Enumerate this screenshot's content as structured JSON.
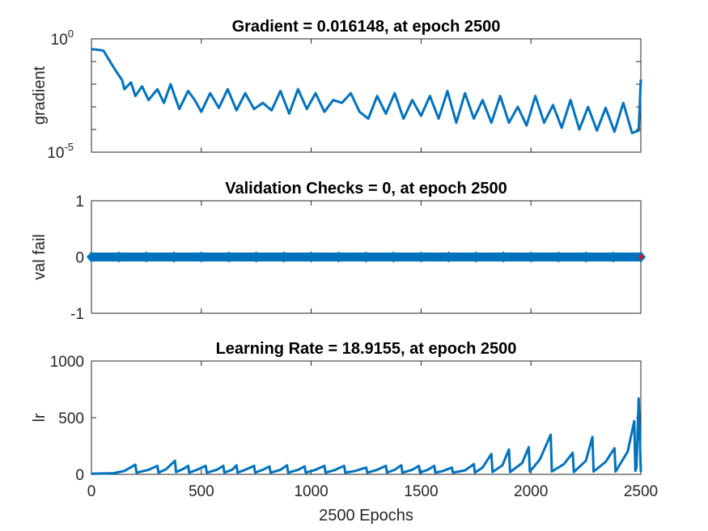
{
  "chart_data": [
    {
      "type": "line",
      "title": "Gradient = 0.016148, at epoch 2500",
      "xlabel": "",
      "ylabel": "gradient",
      "yscale": "log",
      "ylim": [
        1e-05,
        1
      ],
      "xlim": [
        0,
        2500
      ],
      "yticks": [
        {
          "base": "10",
          "exp": "0"
        },
        {
          "base": "10",
          "exp": "-5"
        }
      ],
      "color": "#0072BD",
      "series": [
        {
          "x": [
            0,
            30,
            55,
            80,
            110,
            140,
            150,
            180,
            200,
            230,
            260,
            300,
            330,
            360,
            400,
            440,
            470,
            500,
            540,
            580,
            620,
            660,
            700,
            740,
            780,
            820,
            860,
            900,
            940,
            980,
            1020,
            1060,
            1100,
            1140,
            1180,
            1220,
            1260,
            1300,
            1340,
            1380,
            1420,
            1460,
            1500,
            1540,
            1580,
            1620,
            1660,
            1700,
            1740,
            1780,
            1820,
            1860,
            1900,
            1940,
            1980,
            2020,
            2060,
            2100,
            2140,
            2180,
            2220,
            2260,
            2300,
            2340,
            2380,
            2420,
            2460,
            2490,
            2500
          ],
          "y": [
            0.35,
            0.33,
            0.3,
            0.12,
            0.04,
            0.015,
            0.006,
            0.012,
            0.003,
            0.008,
            0.002,
            0.006,
            0.0015,
            0.01,
            0.0008,
            0.005,
            0.002,
            0.0006,
            0.004,
            0.0009,
            0.006,
            0.0007,
            0.004,
            0.0008,
            0.0015,
            0.0007,
            0.005,
            0.0005,
            0.006,
            0.0008,
            0.004,
            0.0006,
            0.002,
            0.0015,
            0.004,
            0.0006,
            0.0003,
            0.003,
            0.0005,
            0.004,
            0.0003,
            0.002,
            0.0004,
            0.003,
            0.0003,
            0.005,
            0.0002,
            0.004,
            0.0003,
            0.002,
            0.0002,
            0.003,
            0.0002,
            0.001,
            0.00015,
            0.003,
            0.0002,
            0.0012,
            0.00012,
            0.002,
            0.0001,
            0.001,
            9e-05,
            0.0009,
            8e-05,
            0.0015,
            7e-05,
            9e-05,
            0.016148
          ]
        }
      ]
    },
    {
      "type": "line",
      "title": "Validation Checks = 0, at epoch 2500",
      "xlabel": "",
      "ylabel": "val fail",
      "ylim": [
        -1,
        1
      ],
      "xlim": [
        0,
        2500
      ],
      "yticks": [
        "-1",
        "0",
        "1"
      ],
      "color": "#0072BD",
      "marker_color": "#E0141E",
      "series": [
        {
          "x": [
            0,
            2500
          ],
          "y": [
            0,
            0
          ]
        }
      ],
      "final_point": {
        "x": 2500,
        "y": 0
      }
    },
    {
      "type": "line",
      "title": "Learning Rate = 18.9155, at epoch 2500",
      "xlabel": "2500 Epochs",
      "ylabel": "lr",
      "ylim": [
        0,
        1000
      ],
      "xlim": [
        0,
        2500
      ],
      "yticks": [
        "0",
        "500",
        "1000"
      ],
      "xticks": [
        "0",
        "500",
        "1000",
        "1500",
        "2000",
        "2500"
      ],
      "color": "#0072BD",
      "series": [
        {
          "x": [
            0,
            100,
            150,
            200,
            205,
            260,
            300,
            305,
            340,
            380,
            385,
            420,
            440,
            445,
            480,
            520,
            525,
            570,
            600,
            605,
            640,
            660,
            665,
            700,
            740,
            745,
            780,
            810,
            815,
            860,
            890,
            895,
            940,
            970,
            975,
            1020,
            1060,
            1065,
            1110,
            1150,
            1155,
            1200,
            1250,
            1255,
            1300,
            1340,
            1345,
            1380,
            1410,
            1415,
            1460,
            1490,
            1495,
            1530,
            1560,
            1565,
            1600,
            1640,
            1645,
            1700,
            1740,
            1745,
            1780,
            1820,
            1825,
            1870,
            1900,
            1905,
            1960,
            1990,
            1995,
            2040,
            2090,
            2095,
            2150,
            2190,
            2195,
            2250,
            2280,
            2285,
            2340,
            2380,
            2385,
            2440,
            2470,
            2475,
            2480,
            2490,
            2500
          ],
          "y": [
            5,
            10,
            30,
            85,
            15,
            40,
            75,
            15,
            45,
            120,
            20,
            50,
            75,
            15,
            40,
            75,
            15,
            40,
            75,
            15,
            40,
            80,
            15,
            40,
            75,
            15,
            40,
            70,
            15,
            40,
            80,
            15,
            40,
            70,
            15,
            40,
            75,
            15,
            40,
            75,
            15,
            30,
            60,
            15,
            40,
            75,
            15,
            40,
            80,
            15,
            40,
            75,
            15,
            40,
            75,
            15,
            30,
            60,
            15,
            35,
            90,
            15,
            60,
            180,
            20,
            80,
            220,
            20,
            100,
            240,
            25,
            130,
            350,
            25,
            90,
            190,
            20,
            120,
            330,
            25,
            110,
            230,
            25,
            200,
            470,
            30,
            60,
            670,
            19
          ]
        }
      ]
    }
  ]
}
